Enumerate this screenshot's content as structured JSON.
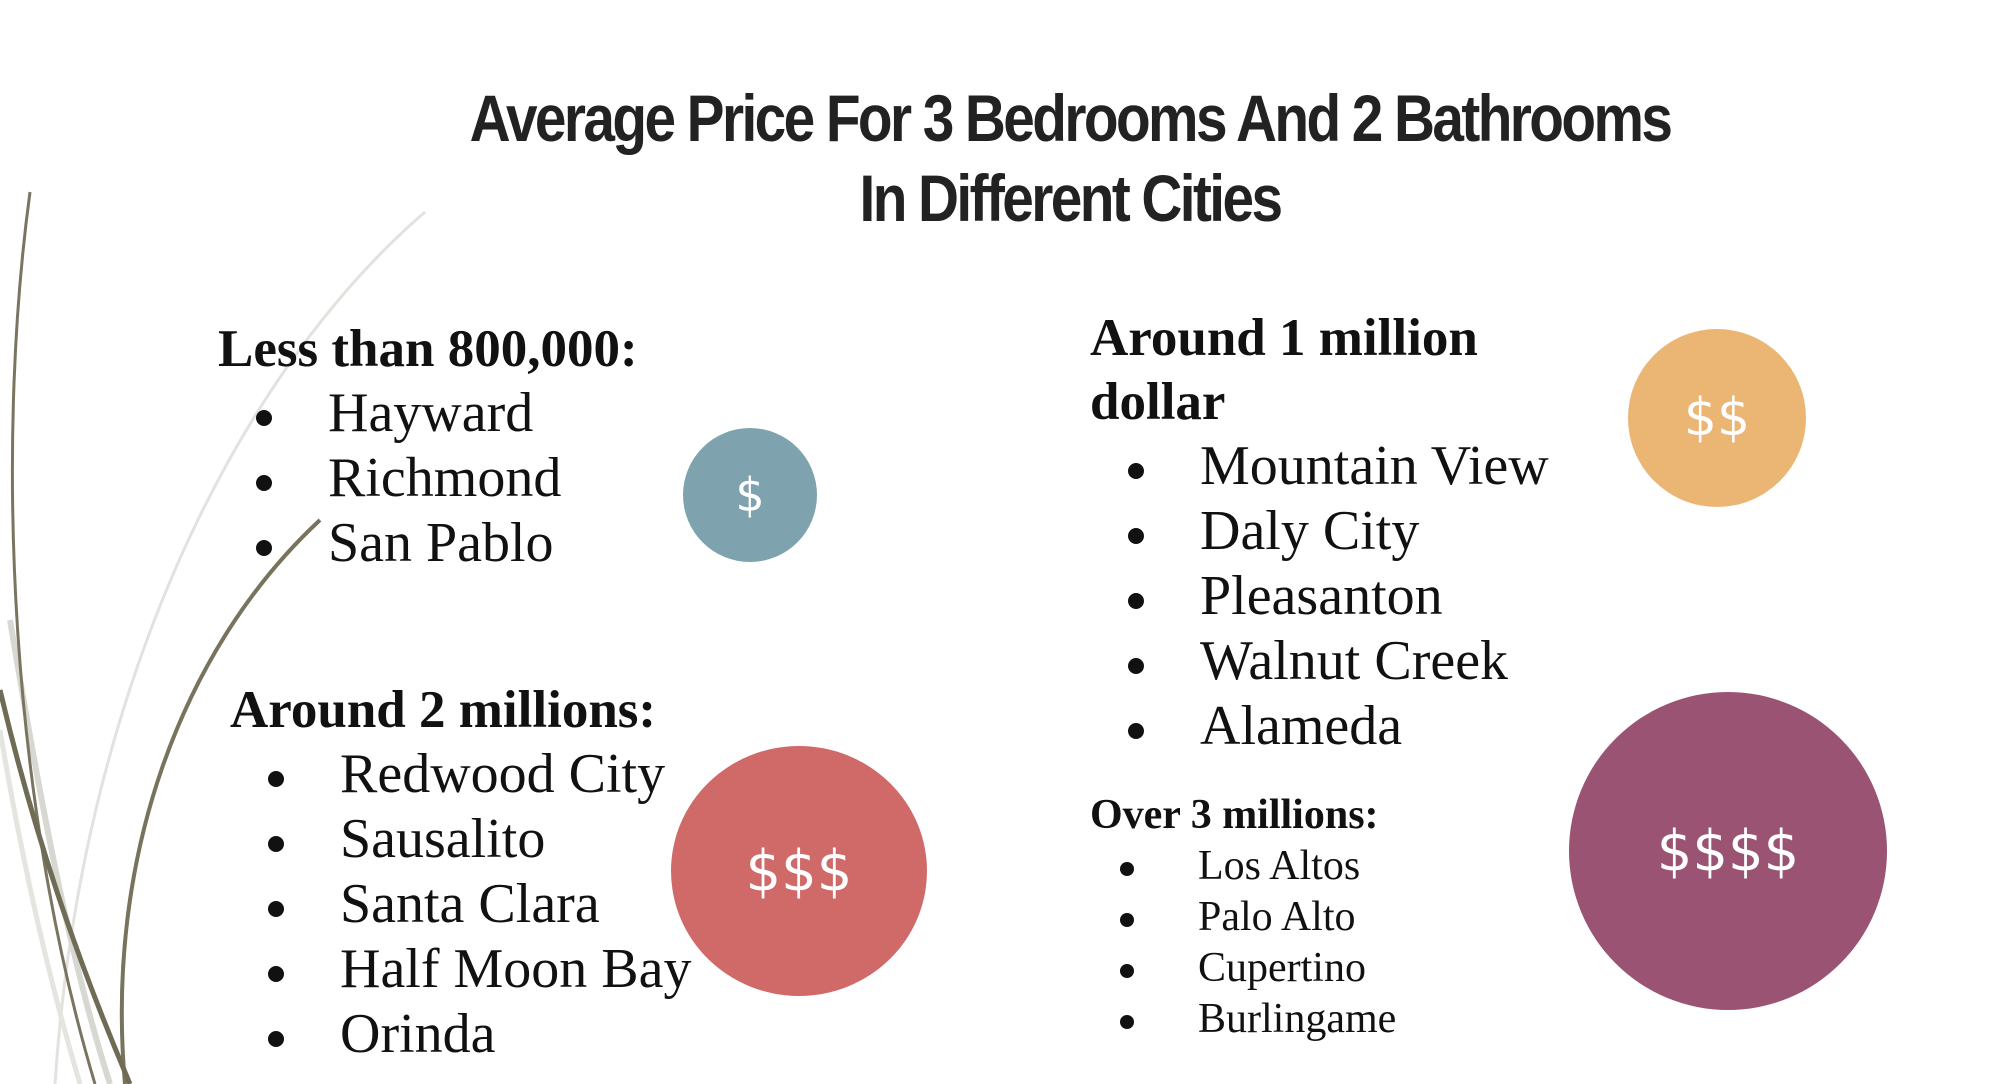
{
  "title": {
    "line1": "Average Price For 3 Bedrooms And 2 Bathrooms",
    "line2": "In Different Cities"
  },
  "groups": {
    "less_than_800k": {
      "heading": "Less than 800,000:",
      "cities": [
        "Hayward",
        "Richmond",
        "San Pablo"
      ],
      "badge": {
        "label": "$",
        "color": "#7fa3ae"
      }
    },
    "around_1m": {
      "heading_line1": "Around 1 million",
      "heading_line2": "dollar",
      "cities": [
        "Mountain View",
        "Daly City",
        "Pleasanton",
        "Walnut Creek",
        "Alameda"
      ],
      "badge": {
        "label": "$$",
        "color": "#ebb574"
      }
    },
    "around_2m": {
      "heading": "Around 2 millions:",
      "cities": [
        "Redwood City",
        "Sausalito",
        "Santa Clara",
        "Half Moon Bay",
        "Orinda"
      ],
      "badge": {
        "label": "$$$",
        "color": "#d06a68"
      }
    },
    "over_3m": {
      "heading": "Over 3 millions:",
      "cities": [
        "Los Altos",
        "Palo Alto",
        "Cupertino",
        "Burlingame"
      ],
      "badge": {
        "label": "$$$$",
        "color": "#9b5373"
      }
    }
  }
}
